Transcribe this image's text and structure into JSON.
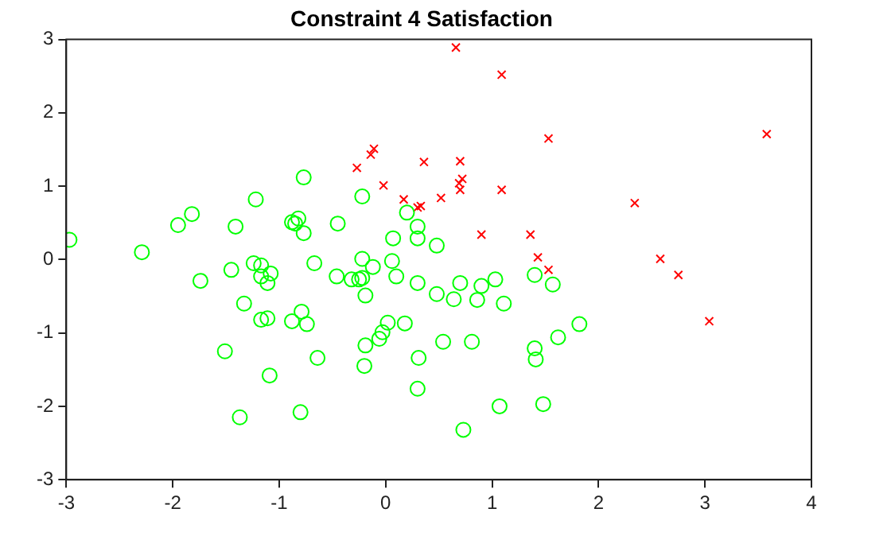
{
  "chart_data": {
    "type": "scatter",
    "title": "Constraint 4 Satisfaction",
    "xlim": [
      -3,
      4
    ],
    "ylim": [
      -3,
      3
    ],
    "xticks": [
      -3,
      -2,
      -1,
      0,
      1,
      2,
      3,
      4
    ],
    "yticks": [
      -3,
      -2,
      -1,
      0,
      1,
      2,
      3
    ],
    "grid": false,
    "legend": false,
    "series": [
      {
        "color": "#00ff00",
        "marker": "circle",
        "x": [
          -2.97,
          -2.29,
          -1.95,
          -1.82,
          -1.41,
          -1.22,
          -0.77,
          -0.88,
          -0.82,
          -0.85,
          -0.77,
          -0.45,
          -0.22,
          -0.67,
          -0.22,
          -0.12,
          -1.45,
          -1.24,
          -1.17,
          -1.74,
          -1.17,
          -1.08,
          -1.11,
          -0.46,
          -0.32,
          -0.25,
          -0.22,
          -0.19,
          -1.33,
          -1.17,
          -1.11,
          -0.88,
          -0.79,
          -0.74,
          -1.51,
          -1.09,
          -0.64,
          -1.37,
          -0.8,
          -0.19,
          -0.2,
          -0.06,
          -0.03,
          0.02,
          0.2,
          0.3,
          0.07,
          0.3,
          0.48,
          0.06,
          0.1,
          0.3,
          0.48,
          0.64,
          0.7,
          0.86,
          0.9,
          1.03,
          1.11,
          1.4,
          1.57,
          1.82,
          1.62,
          1.4,
          1.41,
          1.48,
          1.07,
          0.73,
          0.81,
          0.54,
          0.31,
          0.3,
          0.18
        ],
        "values": [
          0.27,
          0.1,
          0.47,
          0.62,
          0.45,
          0.82,
          1.12,
          0.51,
          0.56,
          0.49,
          0.36,
          0.49,
          0.86,
          -0.05,
          0.01,
          -0.1,
          -0.14,
          -0.05,
          -0.08,
          -0.29,
          -0.23,
          -0.19,
          -0.32,
          -0.23,
          -0.27,
          -0.27,
          -0.25,
          -0.49,
          -0.6,
          -0.82,
          -0.8,
          -0.84,
          -0.71,
          -0.88,
          -1.25,
          -1.58,
          -1.34,
          -2.15,
          -2.08,
          -1.17,
          -1.45,
          -1.08,
          -0.99,
          -0.86,
          0.64,
          0.45,
          0.29,
          0.29,
          0.19,
          -0.02,
          -0.23,
          -0.32,
          -0.47,
          -0.54,
          -0.32,
          -0.55,
          -0.36,
          -0.27,
          -0.6,
          -0.21,
          -0.34,
          -0.88,
          -1.06,
          -1.21,
          -1.36,
          -1.97,
          -2.0,
          -2.32,
          -1.12,
          -1.12,
          -1.34,
          -1.76,
          -0.87
        ]
      },
      {
        "color": "#ff0000",
        "marker": "cross",
        "x": [
          0.66,
          1.09,
          1.53,
          3.58,
          -0.11,
          -0.14,
          -0.27,
          0.36,
          0.7,
          0.72,
          0.69,
          0.7,
          1.09,
          -0.02,
          0.17,
          0.3,
          0.33,
          0.52,
          2.34,
          0.9,
          1.36,
          1.43,
          1.53,
          2.58,
          2.75,
          3.04
        ],
        "values": [
          2.89,
          2.52,
          1.65,
          1.71,
          1.51,
          1.43,
          1.25,
          1.33,
          1.34,
          1.1,
          1.04,
          0.95,
          0.95,
          1.01,
          0.82,
          0.71,
          0.73,
          0.84,
          0.77,
          0.34,
          0.34,
          0.03,
          -0.14,
          0.01,
          -0.21,
          -0.84
        ]
      }
    ]
  }
}
